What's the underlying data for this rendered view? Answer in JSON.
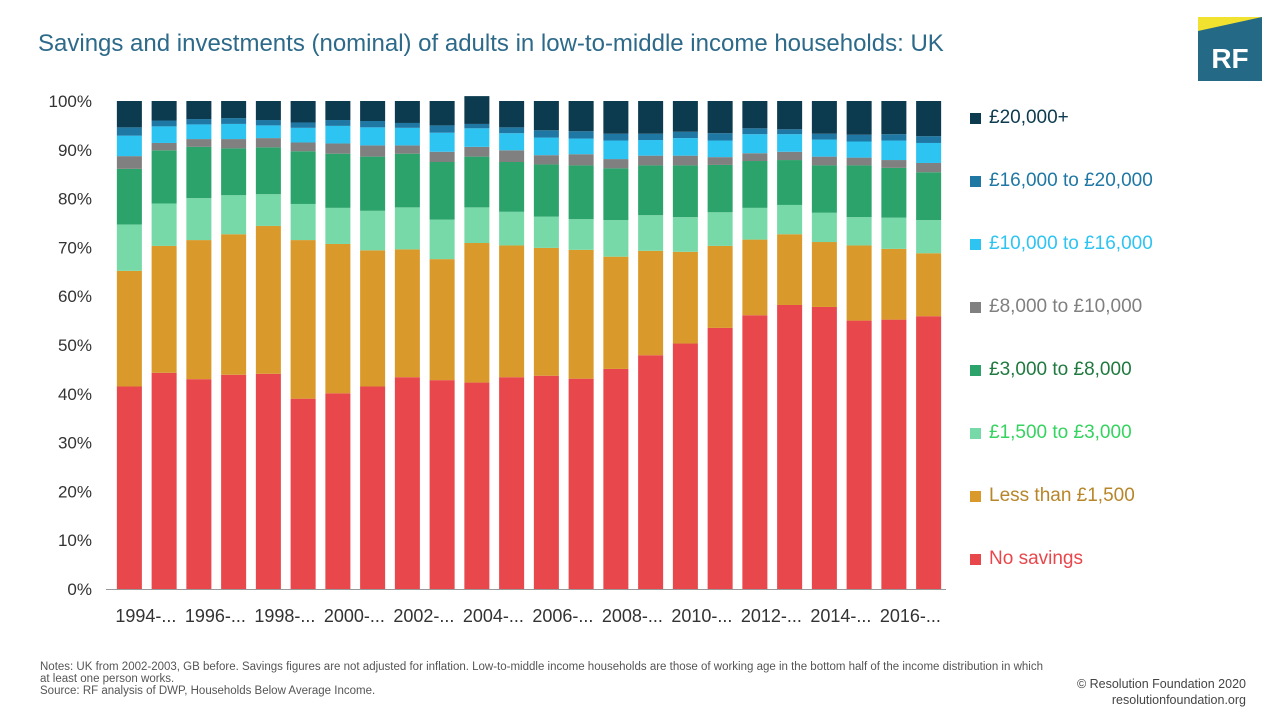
{
  "title": "Savings and investments (nominal) of adults in low-to-middle income households: UK",
  "logo": {
    "text": "RF",
    "bg_color": "#246a87",
    "accent_color": "#f2e230"
  },
  "notes": {
    "line1": "Notes: UK from 2002-2003, GB before. Savings figures are not adjusted for inflation. Low-to-middle income households are those of working age in the bottom half of the income distribution in which at least one person works.",
    "line2": "Source: RF analysis of DWP, Households Below Average Income."
  },
  "credit": {
    "line1": "© Resolution Foundation 2020",
    "line2": "resolutionfoundation.org"
  },
  "chart_data": {
    "type": "bar",
    "stacked": true,
    "ylim": [
      0,
      100
    ],
    "y_ticks": [
      "0%",
      "10%",
      "20%",
      "30%",
      "40%",
      "50%",
      "60%",
      "70%",
      "80%",
      "90%",
      "100%"
    ],
    "x_tick_labels": [
      "1994-...",
      "1996-...",
      "1998-...",
      "2000-...",
      "2002-...",
      "2004-...",
      "2006-...",
      "2008-...",
      "2010-...",
      "2012-...",
      "2014-...",
      "2016-..."
    ],
    "bar_count": 24,
    "legend_position": "right",
    "series": [
      {
        "name": "No savings",
        "color": "#e8474c",
        "label_color": "#e8474c",
        "values": [
          41.5,
          44.3,
          43.0,
          43.9,
          44.1,
          39.0,
          40.1,
          41.5,
          43.4,
          42.8,
          42.3,
          43.4,
          43.7,
          43.1,
          45.1,
          47.9,
          50.3,
          53.5,
          56.1,
          58.2,
          57.8,
          55.0,
          55.2,
          55.9
        ]
      },
      {
        "name": "Less than £1,500",
        "color": "#d99a2b",
        "label_color": "#b8862a",
        "values": [
          23.7,
          26.0,
          28.5,
          28.8,
          30.3,
          32.5,
          30.6,
          27.9,
          26.2,
          24.8,
          28.6,
          27.0,
          26.2,
          26.4,
          23.0,
          21.4,
          18.8,
          16.8,
          15.5,
          14.5,
          13.3,
          15.4,
          14.5,
          12.9
        ]
      },
      {
        "name": "£1,500 to £3,000",
        "color": "#77d9a8",
        "label_color": "#35d35f",
        "values": [
          9.5,
          8.7,
          8.6,
          8.0,
          6.5,
          7.4,
          7.4,
          8.1,
          8.6,
          8.1,
          7.3,
          6.9,
          6.4,
          6.3,
          7.5,
          7.3,
          7.1,
          6.9,
          6.5,
          6.0,
          6.0,
          5.8,
          6.4,
          6.8
        ]
      },
      {
        "name": "£3,000 to £8,000",
        "color": "#2ba36b",
        "label_color": "#1f7a3f",
        "values": [
          11.4,
          10.9,
          10.5,
          9.6,
          9.6,
          10.8,
          11.1,
          11.1,
          11.0,
          11.8,
          10.4,
          10.2,
          10.7,
          11.0,
          10.6,
          10.2,
          10.6,
          9.7,
          9.6,
          9.2,
          9.7,
          10.6,
          10.2,
          9.8
        ]
      },
      {
        "name": "£8,000 to £10,000",
        "color": "#808080",
        "label_color": "#808080",
        "values": [
          2.6,
          1.5,
          1.6,
          1.9,
          1.9,
          1.8,
          2.1,
          2.3,
          1.7,
          2.1,
          2.0,
          2.4,
          1.9,
          2.3,
          1.9,
          2.0,
          2.0,
          1.6,
          1.6,
          1.7,
          1.8,
          1.6,
          1.6,
          1.9
        ]
      },
      {
        "name": "£10,000 to £16,000",
        "color": "#2ec4f2",
        "label_color": "#2ec4f2",
        "values": [
          4.2,
          3.4,
          3.0,
          3.1,
          2.6,
          3.0,
          3.6,
          3.7,
          3.6,
          3.9,
          3.8,
          3.5,
          3.6,
          3.2,
          3.8,
          3.2,
          3.6,
          3.4,
          3.9,
          3.6,
          3.5,
          3.3,
          4.0,
          4.1
        ]
      },
      {
        "name": "£16,000 to £20,000",
        "color": "#1f78a4",
        "label_color": "#1f78a4",
        "values": [
          1.7,
          1.2,
          1.1,
          1.2,
          1.1,
          1.1,
          1.2,
          1.3,
          1.0,
          1.5,
          0.9,
          1.2,
          1.5,
          1.5,
          1.4,
          1.3,
          1.3,
          1.5,
          1.2,
          1.0,
          1.2,
          1.4,
          1.3,
          1.4
        ]
      },
      {
        "name": "£20,000+",
        "color": "#0c3a4e",
        "label_color": "#0c3a4e",
        "values": [
          5.4,
          4.0,
          3.7,
          3.5,
          3.9,
          4.4,
          3.9,
          4.1,
          4.5,
          5.0,
          5.7,
          5.4,
          6.0,
          6.2,
          6.7,
          6.7,
          6.3,
          6.6,
          5.6,
          5.8,
          6.7,
          6.9,
          6.8,
          7.2
        ]
      }
    ]
  }
}
